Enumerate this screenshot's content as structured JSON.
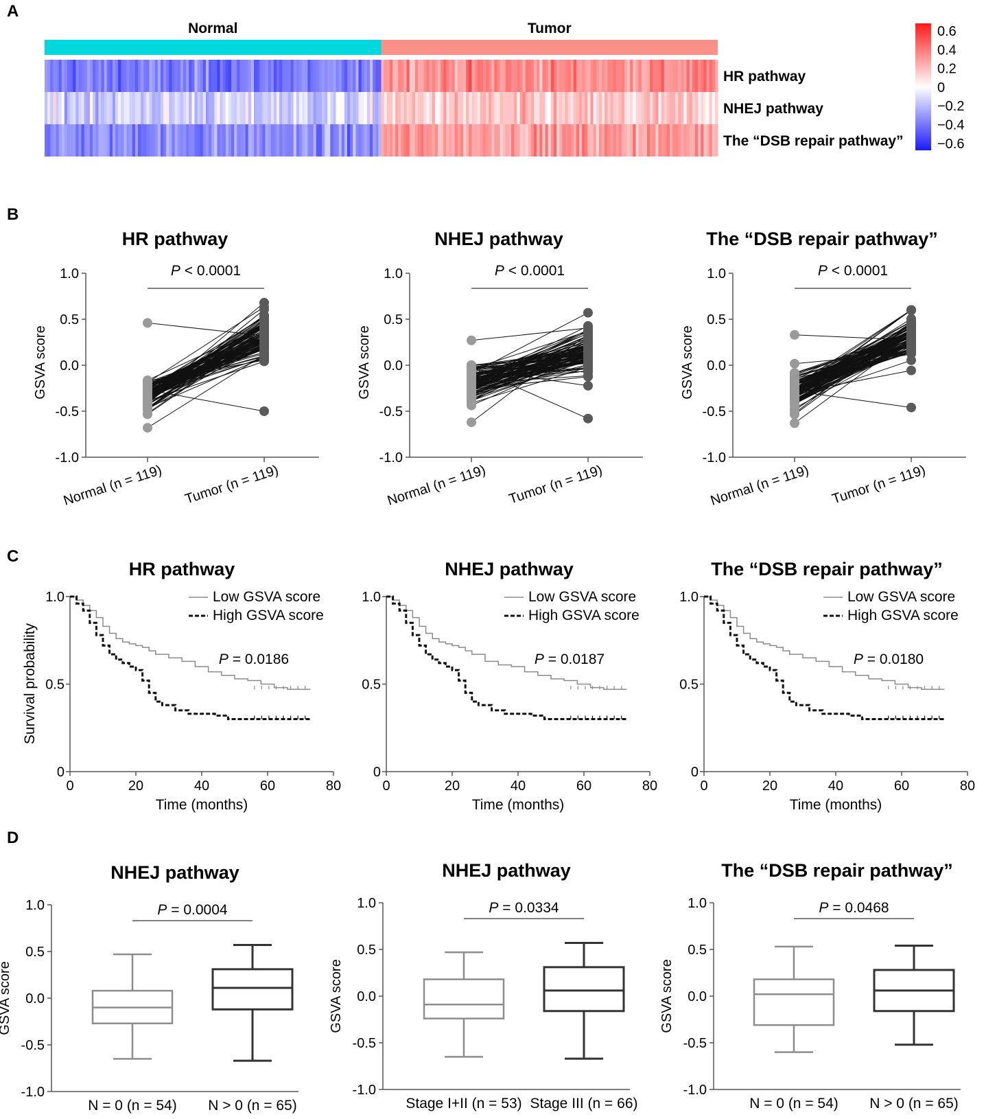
{
  "figure": {
    "panel_labels": [
      "A",
      "B",
      "C",
      "D"
    ]
  },
  "colors": {
    "normal_bar": "#00d8de",
    "tumor_bar": "#f99189",
    "heat_high": "#ff1a1a",
    "heat_mid": "#ffffff",
    "heat_low": "#1a1aff",
    "normal_points": "#9a9a9b",
    "tumor_points": "#5a5a5a",
    "low_line": "#8a8a8a",
    "high_line": "#111111",
    "box_normal": "#8d8d8d",
    "box_tumor": "#333333"
  },
  "chart_data": [
    {
      "panel": "A",
      "type": "heatmap",
      "groups": [
        {
          "name": "Normal",
          "n": 119
        },
        {
          "name": "Tumor",
          "n": 119
        }
      ],
      "rows": [
        "HR pathway",
        "NHEJ pathway",
        "The “DSB repair pathway”"
      ],
      "color_scale": {
        "ticks": [
          "0.6",
          "0.4",
          "0.2",
          "0",
          "−0.2",
          "−0.4",
          "−0.6"
        ],
        "min": -0.6,
        "max": 0.6
      },
      "row_summary": {
        "Normal_mean": [
          -0.35,
          -0.12,
          -0.3
        ],
        "Tumor_mean": [
          0.3,
          0.12,
          0.26
        ]
      }
    },
    {
      "panel": "B",
      "type": "scatter",
      "subtype": "paired",
      "title": "HR pathway",
      "p_value": "P < 0.0001",
      "ylabel": "GSVA score",
      "ylim": [
        -1.0,
        1.0
      ],
      "yticks": [
        "1.0",
        "0.5",
        "0.0",
        "-0.5",
        "-1.0"
      ],
      "categories": [
        "Normal (n = 119)",
        "Tumor (n = 119)"
      ],
      "n_pairs": 119,
      "normal_range": [
        -0.68,
        0.46
      ],
      "tumor_range": [
        -0.5,
        0.68
      ],
      "normal_mean": -0.32,
      "tumor_mean": 0.33
    },
    {
      "panel": "B",
      "type": "scatter",
      "subtype": "paired",
      "title": "NHEJ pathway",
      "p_value": "P < 0.0001",
      "ylabel": "GSVA score",
      "ylim": [
        -1.0,
        1.0
      ],
      "yticks": [
        "1.0",
        "0.5",
        "0.0",
        "-0.5",
        "-1.0"
      ],
      "categories": [
        "Normal (n = 119)",
        "Tumor (n = 119)"
      ],
      "n_pairs": 119,
      "normal_range": [
        -0.62,
        0.27
      ],
      "tumor_range": [
        -0.58,
        0.57
      ],
      "normal_mean": -0.18,
      "tumor_mean": 0.15
    },
    {
      "panel": "B",
      "type": "scatter",
      "subtype": "paired",
      "title": "The “DSB repair pathway”",
      "p_value": "P < 0.0001",
      "ylabel": "GSVA score",
      "ylim": [
        -1.0,
        1.0
      ],
      "yticks": [
        "1.0",
        "0.5",
        "0.0",
        "-0.5",
        "-1.0"
      ],
      "categories": [
        "Normal (n = 119)",
        "Tumor (n = 119)"
      ],
      "n_pairs": 119,
      "normal_range": [
        -0.63,
        0.33
      ],
      "tumor_range": [
        -0.46,
        0.6
      ],
      "normal_mean": -0.28,
      "tumor_mean": 0.3
    },
    {
      "panel": "C",
      "type": "line",
      "subtype": "kaplan-meier",
      "title": "HR pathway",
      "p_value": "P = 0.0186",
      "xlabel": "Time (months)",
      "ylabel": "Survival probability",
      "xlim": [
        0,
        80
      ],
      "ylim": [
        0,
        1.0
      ],
      "xticks": [
        "0",
        "20",
        "40",
        "60",
        "80"
      ],
      "yticks": [
        "1.0",
        "0.5",
        "0"
      ],
      "series": [
        {
          "name": "Low GSVA score",
          "x": [
            0,
            2,
            4,
            6,
            8,
            10,
            12,
            14,
            16,
            18,
            20,
            22,
            24,
            26,
            30,
            34,
            38,
            42,
            46,
            50,
            54,
            58,
            62,
            66,
            70,
            73
          ],
          "y": [
            1.0,
            0.98,
            0.95,
            0.92,
            0.88,
            0.83,
            0.79,
            0.76,
            0.74,
            0.73,
            0.72,
            0.71,
            0.69,
            0.67,
            0.65,
            0.63,
            0.6,
            0.57,
            0.55,
            0.53,
            0.52,
            0.5,
            0.48,
            0.47,
            0.47,
            0.47
          ]
        },
        {
          "name": "High GSVA score",
          "x": [
            0,
            2,
            4,
            6,
            8,
            10,
            12,
            14,
            16,
            18,
            20,
            22,
            24,
            26,
            28,
            32,
            36,
            40,
            44,
            48,
            52,
            56,
            60,
            64,
            68,
            73
          ],
          "y": [
            1.0,
            0.96,
            0.92,
            0.85,
            0.78,
            0.72,
            0.67,
            0.64,
            0.62,
            0.6,
            0.58,
            0.52,
            0.45,
            0.4,
            0.38,
            0.35,
            0.33,
            0.33,
            0.32,
            0.3,
            0.3,
            0.3,
            0.3,
            0.3,
            0.3,
            0.3
          ]
        }
      ]
    },
    {
      "panel": "C",
      "type": "line",
      "subtype": "kaplan-meier",
      "title": "NHEJ pathway",
      "p_value": "P = 0.0187",
      "xlabel": "Time (months)",
      "ylabel": "",
      "xlim": [
        0,
        80
      ],
      "ylim": [
        0,
        1.0
      ],
      "xticks": [
        "0",
        "20",
        "40",
        "60",
        "80"
      ],
      "yticks": [
        "1.0",
        "0.5",
        "0"
      ],
      "series": [
        {
          "name": "Low GSVA score",
          "x": [
            0,
            2,
            4,
            6,
            8,
            10,
            12,
            14,
            16,
            18,
            20,
            22,
            24,
            26,
            30,
            34,
            38,
            42,
            46,
            50,
            54,
            58,
            62,
            66,
            70,
            73
          ],
          "y": [
            1.0,
            0.98,
            0.95,
            0.92,
            0.88,
            0.83,
            0.79,
            0.76,
            0.74,
            0.73,
            0.72,
            0.71,
            0.69,
            0.67,
            0.63,
            0.61,
            0.6,
            0.57,
            0.55,
            0.53,
            0.52,
            0.5,
            0.48,
            0.47,
            0.47,
            0.47
          ]
        },
        {
          "name": "High GSVA score",
          "x": [
            0,
            2,
            4,
            6,
            8,
            10,
            12,
            14,
            16,
            18,
            20,
            22,
            24,
            26,
            28,
            32,
            36,
            40,
            44,
            48,
            52,
            56,
            60,
            64,
            68,
            73
          ],
          "y": [
            1.0,
            0.96,
            0.92,
            0.85,
            0.78,
            0.72,
            0.67,
            0.64,
            0.62,
            0.6,
            0.58,
            0.52,
            0.45,
            0.4,
            0.38,
            0.35,
            0.33,
            0.33,
            0.32,
            0.3,
            0.3,
            0.3,
            0.3,
            0.3,
            0.3,
            0.3
          ]
        }
      ]
    },
    {
      "panel": "C",
      "type": "line",
      "subtype": "kaplan-meier",
      "title": "The “DSB repair pathway”",
      "p_value": "P = 0.0180",
      "xlabel": "Time (months)",
      "ylabel": "",
      "xlim": [
        0,
        80
      ],
      "ylim": [
        0,
        1.0
      ],
      "xticks": [
        "0",
        "20",
        "40",
        "60",
        "80"
      ],
      "yticks": [
        "1.0",
        "0.5",
        "0"
      ],
      "series": [
        {
          "name": "Low GSVA score",
          "x": [
            0,
            2,
            4,
            6,
            8,
            10,
            12,
            14,
            16,
            18,
            20,
            22,
            24,
            26,
            30,
            34,
            38,
            42,
            46,
            50,
            54,
            58,
            62,
            66,
            70,
            73
          ],
          "y": [
            1.0,
            0.98,
            0.95,
            0.92,
            0.88,
            0.83,
            0.79,
            0.76,
            0.74,
            0.73,
            0.72,
            0.71,
            0.69,
            0.67,
            0.65,
            0.63,
            0.6,
            0.57,
            0.55,
            0.53,
            0.52,
            0.5,
            0.48,
            0.47,
            0.47,
            0.47
          ]
        },
        {
          "name": "High GSVA score",
          "x": [
            0,
            2,
            4,
            6,
            8,
            10,
            12,
            14,
            16,
            18,
            20,
            22,
            24,
            26,
            28,
            32,
            36,
            40,
            44,
            48,
            52,
            56,
            60,
            64,
            68,
            73
          ],
          "y": [
            1.0,
            0.96,
            0.92,
            0.85,
            0.78,
            0.72,
            0.67,
            0.64,
            0.62,
            0.6,
            0.58,
            0.52,
            0.45,
            0.4,
            0.38,
            0.35,
            0.33,
            0.33,
            0.32,
            0.3,
            0.3,
            0.3,
            0.3,
            0.3,
            0.3,
            0.3
          ]
        }
      ]
    },
    {
      "panel": "D",
      "type": "box",
      "title": "NHEJ pathway",
      "p_value": "P = 0.0004",
      "ylabel": "GSVA score",
      "ylim": [
        -1.0,
        1.0
      ],
      "yticks": [
        "1.0",
        "0.5",
        "0.0",
        "-0.5",
        "-1.0"
      ],
      "categories": [
        "N = 0 (n = 54)",
        "N > 0 (n = 65)"
      ],
      "boxes": [
        {
          "min": -0.65,
          "q1": -0.27,
          "median": -0.1,
          "q3": 0.08,
          "max": 0.47
        },
        {
          "min": -0.67,
          "q1": -0.12,
          "median": 0.11,
          "q3": 0.31,
          "max": 0.57
        }
      ]
    },
    {
      "panel": "D",
      "type": "box",
      "title": "NHEJ pathway",
      "p_value": "P = 0.0334",
      "ylabel": "GSVA score",
      "ylim": [
        -1.0,
        1.0
      ],
      "yticks": [
        "1.0",
        "0.5",
        "0.0",
        "-0.5",
        "-1.0"
      ],
      "categories": [
        "Stage I+II (n = 53)",
        "Stage III (n = 66)"
      ],
      "boxes": [
        {
          "min": -0.65,
          "q1": -0.24,
          "median": -0.09,
          "q3": 0.18,
          "max": 0.47
        },
        {
          "min": -0.67,
          "q1": -0.16,
          "median": 0.06,
          "q3": 0.31,
          "max": 0.57
        }
      ]
    },
    {
      "panel": "D",
      "type": "box",
      "title": "The “DSB repair pathway”",
      "p_value": "P = 0.0468",
      "ylabel": "GSVA score",
      "ylim": [
        -1.0,
        1.0
      ],
      "yticks": [
        "1.0",
        "0.5",
        "0.0",
        "-0.5",
        "-1.0"
      ],
      "categories": [
        "N = 0 (n = 54)",
        "N > 0 (n = 65)"
      ],
      "boxes": [
        {
          "min": -0.6,
          "q1": -0.31,
          "median": 0.02,
          "q3": 0.18,
          "max": 0.53
        },
        {
          "min": -0.52,
          "q1": -0.16,
          "median": 0.06,
          "q3": 0.28,
          "max": 0.54
        }
      ]
    }
  ]
}
